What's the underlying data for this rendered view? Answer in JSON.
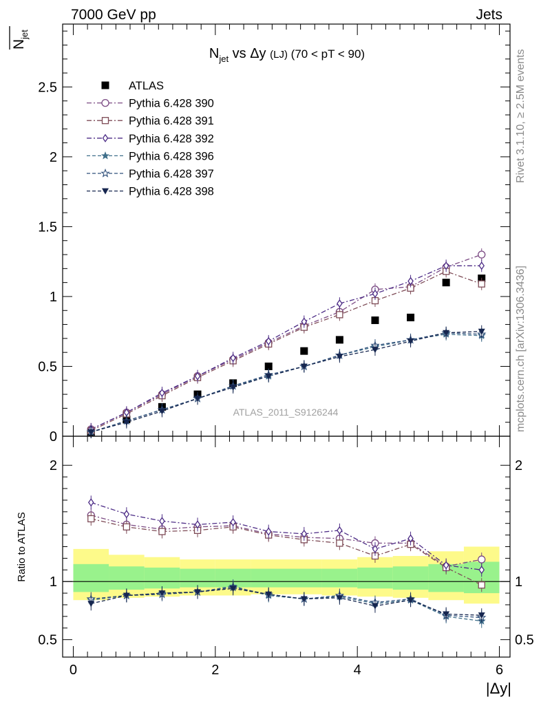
{
  "header": {
    "energy_label": "7000 GeV pp",
    "category_label": "Jets",
    "side_label_top": "Rivet 3.1.10, ≥ 2.5M events",
    "side_label_bottom": "mcplots.cern.ch [arXiv:1306.3436]",
    "watermark": "ATLAS_2011_S9126244"
  },
  "chart_data": [
    {
      "type": "scatter",
      "panel": "main",
      "title": "N_jet vs Δy (LJ) (70 < pT < 90)",
      "title_parts": {
        "n": "N",
        "sub": "jet",
        "vs": " vs Δy ",
        "lj": "(LJ)",
        "range": " (70 < pT <  90)"
      },
      "ylabel_parts": {
        "n": "N",
        "sub": "jet"
      },
      "xlabel": "",
      "xlim": [
        -0.15,
        6.15
      ],
      "ylim": [
        0,
        2.95
      ],
      "yticks": [
        "0",
        "0.5",
        "1",
        "1.5",
        "2",
        "2.5"
      ],
      "x": [
        0.25,
        0.75,
        1.25,
        1.75,
        2.25,
        2.75,
        3.25,
        3.75,
        4.25,
        4.75,
        5.25,
        5.75
      ],
      "series": [
        {
          "name": "ATLAS",
          "marker": "filled-square",
          "color": "#000000",
          "line": "none",
          "values": [
            0.03,
            0.12,
            0.21,
            0.3,
            0.38,
            0.5,
            0.61,
            0.69,
            0.83,
            0.85,
            1.1,
            1.13
          ]
        },
        {
          "name": "Pythia 6.428 390",
          "marker": "open-circle",
          "color": "#7b4a83",
          "line": "dashdot",
          "values": [
            0.05,
            0.17,
            0.3,
            0.43,
            0.55,
            0.67,
            0.79,
            0.89,
            1.05,
            1.07,
            1.21,
            1.3
          ]
        },
        {
          "name": "Pythia 6.428 391",
          "marker": "open-square",
          "color": "#7d4a55",
          "line": "dashdot",
          "values": [
            0.04,
            0.16,
            0.29,
            0.42,
            0.54,
            0.66,
            0.78,
            0.87,
            0.97,
            1.06,
            1.18,
            1.09
          ]
        },
        {
          "name": "Pythia 6.428 392",
          "marker": "open-diamond",
          "color": "#4b2a85",
          "line": "dashdot",
          "values": [
            0.05,
            0.17,
            0.31,
            0.43,
            0.56,
            0.68,
            0.82,
            0.95,
            1.02,
            1.11,
            1.22,
            1.22
          ]
        },
        {
          "name": "Pythia 6.428 396",
          "marker": "filled-star",
          "color": "#3f6f8a",
          "line": "dashed",
          "values": [
            0.03,
            0.11,
            0.19,
            0.27,
            0.36,
            0.43,
            0.5,
            0.58,
            0.64,
            0.69,
            0.73,
            0.72
          ]
        },
        {
          "name": "Pythia 6.428 397",
          "marker": "open-star",
          "color": "#2f4f7a",
          "line": "dashed",
          "values": [
            0.03,
            0.11,
            0.19,
            0.27,
            0.36,
            0.44,
            0.5,
            0.58,
            0.65,
            0.69,
            0.74,
            0.73
          ]
        },
        {
          "name": "Pythia 6.428 398",
          "marker": "filled-triangle-down",
          "color": "#16264f",
          "line": "dashed",
          "values": [
            0.03,
            0.1,
            0.18,
            0.27,
            0.35,
            0.43,
            0.5,
            0.57,
            0.62,
            0.68,
            0.74,
            0.75
          ]
        }
      ],
      "legend_position": "top-left"
    },
    {
      "type": "scatter",
      "panel": "ratio",
      "ylabel": "Ratio to ATLAS",
      "xlabel": "|Δy|",
      "xlim": [
        -0.15,
        6.15
      ],
      "ylim": [
        0.35,
        2.25
      ],
      "yticks": [
        "0.5",
        "1",
        "2"
      ],
      "xticks": [
        "0",
        "2",
        "4",
        "6"
      ],
      "x": [
        0.25,
        0.75,
        1.25,
        1.75,
        2.25,
        2.75,
        3.25,
        3.75,
        4.25,
        4.75,
        5.25,
        5.75
      ],
      "bands": {
        "edges": [
          0,
          0.5,
          1.0,
          1.5,
          2.0,
          2.5,
          3.0,
          3.5,
          4.0,
          4.5,
          5.0,
          5.5,
          6.0
        ],
        "yellow_low": [
          0.84,
          0.86,
          0.87,
          0.88,
          0.88,
          0.89,
          0.89,
          0.88,
          0.87,
          0.86,
          0.84,
          0.81
        ],
        "yellow_high": [
          1.28,
          1.23,
          1.21,
          1.19,
          1.19,
          1.19,
          1.19,
          1.19,
          1.21,
          1.22,
          1.26,
          1.3
        ],
        "green_low": [
          0.91,
          0.93,
          0.94,
          0.95,
          0.95,
          0.95,
          0.95,
          0.95,
          0.94,
          0.93,
          0.91,
          0.9
        ],
        "green_high": [
          1.15,
          1.13,
          1.12,
          1.11,
          1.11,
          1.11,
          1.11,
          1.11,
          1.12,
          1.13,
          1.15,
          1.17
        ],
        "green_color": "#99f28c",
        "yellow_color": "#fdfa8a"
      },
      "series": [
        {
          "name": "Pythia 6.428 390",
          "values": [
            1.57,
            1.49,
            1.45,
            1.47,
            1.48,
            1.41,
            1.38,
            1.37,
            1.33,
            1.33,
            1.13,
            1.19
          ]
        },
        {
          "name": "Pythia 6.428 391",
          "values": [
            1.54,
            1.47,
            1.43,
            1.44,
            1.47,
            1.4,
            1.36,
            1.33,
            1.22,
            1.32,
            1.12,
            0.97
          ]
        },
        {
          "name": "Pythia 6.428 392",
          "values": [
            1.68,
            1.58,
            1.52,
            1.49,
            1.51,
            1.43,
            1.41,
            1.44,
            1.28,
            1.37,
            1.14,
            1.1
          ]
        },
        {
          "name": "Pythia 6.428 396",
          "values": [
            0.84,
            0.88,
            0.9,
            0.91,
            0.96,
            0.88,
            0.85,
            0.87,
            0.81,
            0.84,
            0.7,
            0.66
          ]
        },
        {
          "name": "Pythia 6.428 397",
          "values": [
            0.85,
            0.88,
            0.89,
            0.91,
            0.95,
            0.89,
            0.85,
            0.88,
            0.82,
            0.85,
            0.71,
            0.69
          ]
        },
        {
          "name": "Pythia 6.428 398",
          "values": [
            0.81,
            0.88,
            0.9,
            0.91,
            0.94,
            0.89,
            0.85,
            0.86,
            0.79,
            0.84,
            0.72,
            0.71
          ]
        }
      ]
    }
  ]
}
